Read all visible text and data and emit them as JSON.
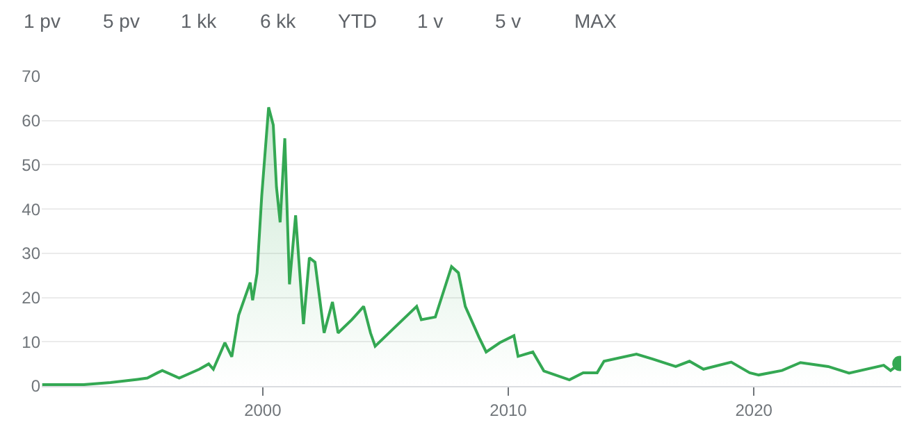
{
  "chart_data": {
    "type": "area",
    "annotations": [
      "1 pv",
      "5 pv",
      "1 kk",
      "6 kk",
      "YTD",
      "1 v",
      "5 v",
      "MAX"
    ],
    "xlim": [
      1991,
      2026
    ],
    "xticks": [
      2000,
      2010,
      2020
    ],
    "ylim": [
      0,
      70
    ],
    "yticks": [
      0,
      10,
      20,
      30,
      40,
      50,
      60,
      70
    ],
    "grid": "y",
    "series": [
      {
        "color": "#34a853",
        "x": [
          1991.02,
          1992.7,
          1993.8,
          1994.9,
          1995.3,
          1995.72,
          1995.91,
          1996.6,
          1997.42,
          1997.8,
          1997.99,
          1998.46,
          1998.74,
          1999.02,
          1999.49,
          1999.59,
          1999.77,
          1999.96,
          2000.24,
          2000.43,
          2000.56,
          2000.71,
          2000.9,
          2001.09,
          2001.34,
          2001.66,
          2001.9,
          2002.13,
          2002.5,
          2002.84,
          2003.07,
          2003.63,
          2004.11,
          2004.39,
          2004.58,
          2005.33,
          2006.27,
          2006.46,
          2007.03,
          2007.69,
          2007.97,
          2008.25,
          2008.81,
          2009.1,
          2009.66,
          2010.23,
          2010.4,
          2011.0,
          2011.45,
          2012.49,
          2013.05,
          2013.62,
          2013.9,
          2015.22,
          2015.88,
          2016.82,
          2017.38,
          2017.95,
          2019.08,
          2019.83,
          2020.2,
          2021.15,
          2021.9,
          2023.03,
          2023.88,
          2025.29,
          2025.57,
          2025.95
        ],
        "values": [
          0.3,
          0.3,
          0.8,
          1.5,
          1.8,
          3.0,
          3.5,
          1.8,
          3.8,
          5.0,
          3.8,
          9.8,
          6.6,
          16,
          23.4,
          19.4,
          25.5,
          43,
          63,
          59,
          45,
          37,
          56,
          23,
          38.6,
          14,
          29,
          28,
          12,
          19,
          12,
          15,
          18,
          12,
          9,
          13,
          18,
          15,
          15.6,
          27,
          25.6,
          18,
          11,
          7.7,
          9.8,
          11.4,
          6.7,
          7.7,
          3.4,
          1.4,
          3.0,
          3.0,
          5.6,
          7.2,
          6.1,
          4.4,
          5.6,
          3.8,
          5.4,
          3.0,
          2.5,
          3.5,
          5.3,
          4.4,
          2.9,
          4.7,
          3.5,
          5.1
        ]
      },
      {
        "type": "scatter",
        "marker": "circle",
        "color": "#34a853",
        "x": [
          2025.95
        ],
        "values": [
          5.1
        ]
      }
    ]
  }
}
